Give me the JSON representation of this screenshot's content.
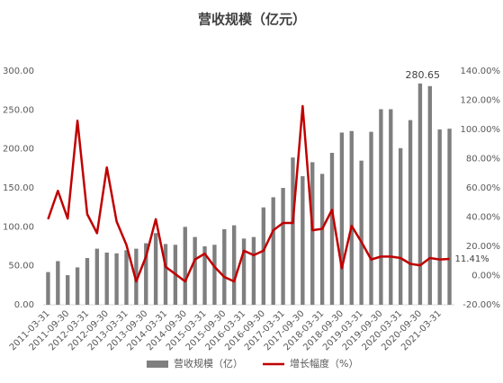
{
  "chart_data": {
    "type": "bar_line",
    "title": "营收规模（亿元）",
    "categories": [
      "2011-03-31",
      null,
      "2011-09-30",
      null,
      "2012-03-31",
      null,
      "2012-09-30",
      null,
      "2013-03-31",
      null,
      "2013-09-30",
      null,
      "2014-03-31",
      null,
      "2014-09-30",
      null,
      "2015-03-31",
      null,
      "2015-09-30",
      null,
      "2016-03-31",
      null,
      "2016-09-30",
      null,
      "2017-03-31",
      null,
      "2017-09-30",
      null,
      "2018-03-31",
      null,
      "2018-09-30",
      null,
      "2019-03-31",
      null,
      "2019-09-30",
      null,
      "2020-03-31",
      null,
      "2020-09-30",
      null,
      "2021-03-31",
      null
    ],
    "series": [
      {
        "name": "营收规模（亿）",
        "type": "bar",
        "color": "#7f7f7f",
        "values": [
          42,
          56,
          38,
          48,
          60,
          72,
          67,
          66,
          70,
          72,
          79,
          92,
          78,
          77,
          100,
          87,
          75,
          77,
          97,
          102,
          85,
          87,
          125,
          138,
          150,
          189,
          165,
          183,
          168,
          195,
          221,
          223,
          185,
          222,
          251,
          251,
          201,
          237,
          284,
          280.65,
          225,
          226
        ],
        "value_labels": [
          null,
          null,
          null,
          null,
          null,
          null,
          null,
          null,
          null,
          null,
          null,
          null,
          null,
          null,
          null,
          null,
          null,
          null,
          null,
          null,
          null,
          null,
          null,
          null,
          null,
          null,
          null,
          null,
          null,
          null,
          null,
          null,
          null,
          null,
          null,
          null,
          null,
          null,
          null,
          "280.65",
          null,
          null
        ]
      },
      {
        "name": "增长幅度（%）",
        "type": "line",
        "axis": "y2",
        "color": "#c00000",
        "values": [
          38.6,
          58,
          39,
          106,
          42,
          29,
          74,
          37,
          21,
          -4,
          13,
          38.6,
          6,
          1,
          -4,
          11,
          15,
          6,
          -1,
          -4,
          17,
          14,
          17,
          31,
          36,
          36,
          116,
          31,
          32,
          45,
          5,
          34,
          23,
          11,
          13,
          13,
          12,
          8,
          7,
          12,
          11,
          11.41
        ],
        "value_labels": [
          null,
          null,
          null,
          null,
          null,
          null,
          null,
          null,
          null,
          null,
          null,
          null,
          null,
          null,
          null,
          null,
          null,
          null,
          null,
          null,
          null,
          null,
          null,
          null,
          null,
          null,
          null,
          null,
          null,
          null,
          null,
          null,
          null,
          null,
          null,
          null,
          null,
          null,
          null,
          null,
          null,
          "11.41%"
        ]
      }
    ],
    "ylim": [
      0,
      300
    ],
    "yticks": [
      {
        "value": 0,
        "label": "0.00"
      },
      {
        "value": 50,
        "label": "50.00"
      },
      {
        "value": 100,
        "label": "100.00"
      },
      {
        "value": 150,
        "label": "150.00"
      },
      {
        "value": 200,
        "label": "200.00"
      },
      {
        "value": 250,
        "label": "250.00"
      },
      {
        "value": 300,
        "label": "300.00"
      }
    ],
    "y2lim": [
      -20,
      140
    ],
    "y2ticks": [
      {
        "value": -20,
        "label": "-20.00%"
      },
      {
        "value": 0,
        "label": "0.00%"
      },
      {
        "value": 20,
        "label": "20.00%"
      },
      {
        "value": 40,
        "label": "40.00%"
      },
      {
        "value": 60,
        "label": "60.00%"
      },
      {
        "value": 80,
        "label": "80.00%"
      },
      {
        "value": 100,
        "label": "100.00%"
      },
      {
        "value": 120,
        "label": "120.00%"
      },
      {
        "value": 140,
        "label": "140.00%"
      }
    ],
    "legend": "bottom"
  }
}
